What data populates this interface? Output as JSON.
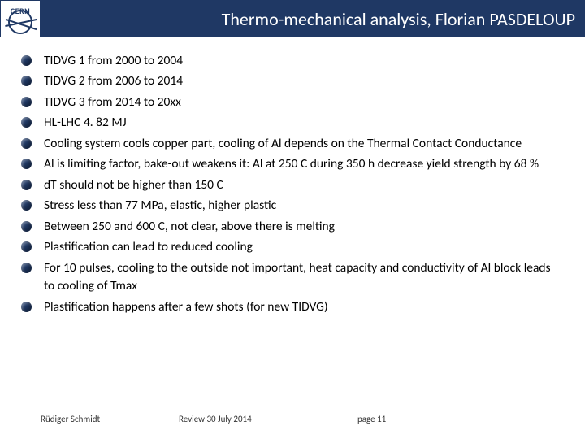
{
  "header": {
    "logo_text": "CERN",
    "title": "Thermo-mechanical analysis, Florian PASDELOUP",
    "bg_color": "#1f3864",
    "title_color": "#ffffff"
  },
  "bullets": [
    "TIDVG 1 from 2000 to 2004",
    "TIDVG 2 from 2006 to 2014",
    "TIDVG 3 from 2014 to 20xx",
    "HL-LHC 4. 82 MJ",
    "Cooling system cools copper part, cooling  of Al depends on the Thermal Contact Conductance",
    "Al is limiting factor, bake-out weakens it: Al at 250 C during 350 h decrease yield strength by 68 %",
    "dT should not be higher than 150 C",
    "Stress less than 77 MPa, elastic, higher plastic",
    "Between 250 and 600 C, not clear, above there is melting",
    "Plastification can lead to reduced cooling",
    "For 10 pulses, cooling to the outside not important, heat capacity and conductivity of Al block leads to cooling of Tmax",
    "Plastification happens after a few shots (for new TIDVG)"
  ],
  "footer": {
    "author": "Rüdiger Schmidt",
    "mid": "Review  30 July 2014",
    "page": "page 11"
  }
}
